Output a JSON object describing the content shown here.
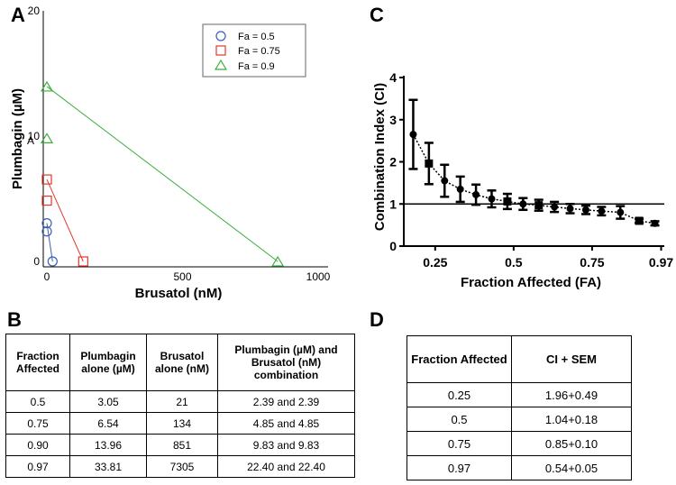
{
  "panels": {
    "a": "A",
    "b": "B",
    "c": "C",
    "d": "D"
  },
  "chart_data": [
    {
      "type": "scatter",
      "title": "",
      "xlabel": "Brusatol (nM)",
      "ylabel": "Plumbagin (µM)",
      "xlim": [
        0,
        1000
      ],
      "ylim": [
        0,
        20
      ],
      "xticks": [
        "0",
        "500",
        "1000"
      ],
      "yticks": [
        "0",
        "10",
        "20"
      ],
      "stray_label": "A",
      "legend": {
        "position": "top-right",
        "entries": [
          "Fa = 0.5",
          "Fa = 0.75",
          "Fa = 0.9"
        ]
      },
      "series": [
        {
          "name": "Fa = 0.5",
          "color": "#3a5fb3",
          "marker": "circle",
          "points": [
            [
              0,
              3.05
            ],
            [
              0,
              2.39
            ],
            [
              21,
              0
            ]
          ],
          "line": [
            [
              0,
              3.05
            ],
            [
              21,
              0
            ]
          ]
        },
        {
          "name": "Fa = 0.75",
          "color": "#e03a2a",
          "marker": "square",
          "points": [
            [
              0,
              6.54
            ],
            [
              0,
              4.85
            ],
            [
              134,
              0
            ]
          ],
          "line": [
            [
              0,
              6.54
            ],
            [
              134,
              0
            ]
          ]
        },
        {
          "name": "Fa = 0.9",
          "color": "#3cae3c",
          "marker": "triangle",
          "points": [
            [
              0,
              13.96
            ],
            [
              0,
              9.83
            ],
            [
              851,
              0
            ]
          ],
          "line": [
            [
              0,
              13.96
            ],
            [
              851,
              0
            ]
          ]
        }
      ]
    },
    {
      "type": "line",
      "title": "",
      "xlabel": "Fraction Affected (FA)",
      "ylabel": "Combination Index (CI)",
      "xlim": [
        0.15,
        0.98
      ],
      "ylim": [
        0,
        4
      ],
      "xticks": [
        "0.25",
        "0.5",
        "0.75",
        "0.97"
      ],
      "xtick_values": [
        0.25,
        0.5,
        0.75,
        0.97
      ],
      "yticks": [
        "0",
        "1",
        "2",
        "3",
        "4"
      ],
      "reference_line": 1,
      "series": [
        {
          "name": "CI",
          "color": "#000",
          "x": [
            0.18,
            0.23,
            0.28,
            0.33,
            0.38,
            0.43,
            0.48,
            0.53,
            0.58,
            0.63,
            0.68,
            0.73,
            0.78,
            0.84,
            0.9,
            0.95
          ],
          "y": [
            2.65,
            1.96,
            1.55,
            1.35,
            1.22,
            1.12,
            1.06,
            1.0,
            0.97,
            0.93,
            0.89,
            0.86,
            0.83,
            0.8,
            0.6,
            0.54
          ],
          "err": [
            0.82,
            0.49,
            0.38,
            0.3,
            0.24,
            0.2,
            0.18,
            0.14,
            0.13,
            0.12,
            0.11,
            0.1,
            0.1,
            0.15,
            0.05,
            0.05
          ],
          "markers": [
            "circle",
            "square",
            "circle",
            "circle",
            "circle",
            "circle",
            "square",
            "circle",
            "square",
            "circle",
            "circle",
            "circle",
            "circle",
            "circle",
            "square",
            "circle"
          ]
        }
      ]
    }
  ],
  "tableB": {
    "headers": [
      "Fraction Affected",
      "Plumbagin alone (µM)",
      "Brusatol alone (nM)",
      "Plumbagin (µM) and Brusatol (nM) combination"
    ],
    "rows": [
      [
        "0.5",
        "3.05",
        "21",
        "2.39 and 2.39"
      ],
      [
        "0.75",
        "6.54",
        "134",
        "4.85 and 4.85"
      ],
      [
        "0.90",
        "13.96",
        "851",
        "9.83 and 9.83"
      ],
      [
        "0.97",
        "33.81",
        "7305",
        "22.40 and 22.40"
      ]
    ]
  },
  "tableD": {
    "headers": [
      "Fraction Affected",
      "CI + SEM"
    ],
    "rows": [
      [
        "0.25",
        "1.96+0.49"
      ],
      [
        "0.5",
        "1.04+0.18"
      ],
      [
        "0.75",
        "0.85+0.10"
      ],
      [
        "0.97",
        "0.54+0.05"
      ]
    ]
  }
}
